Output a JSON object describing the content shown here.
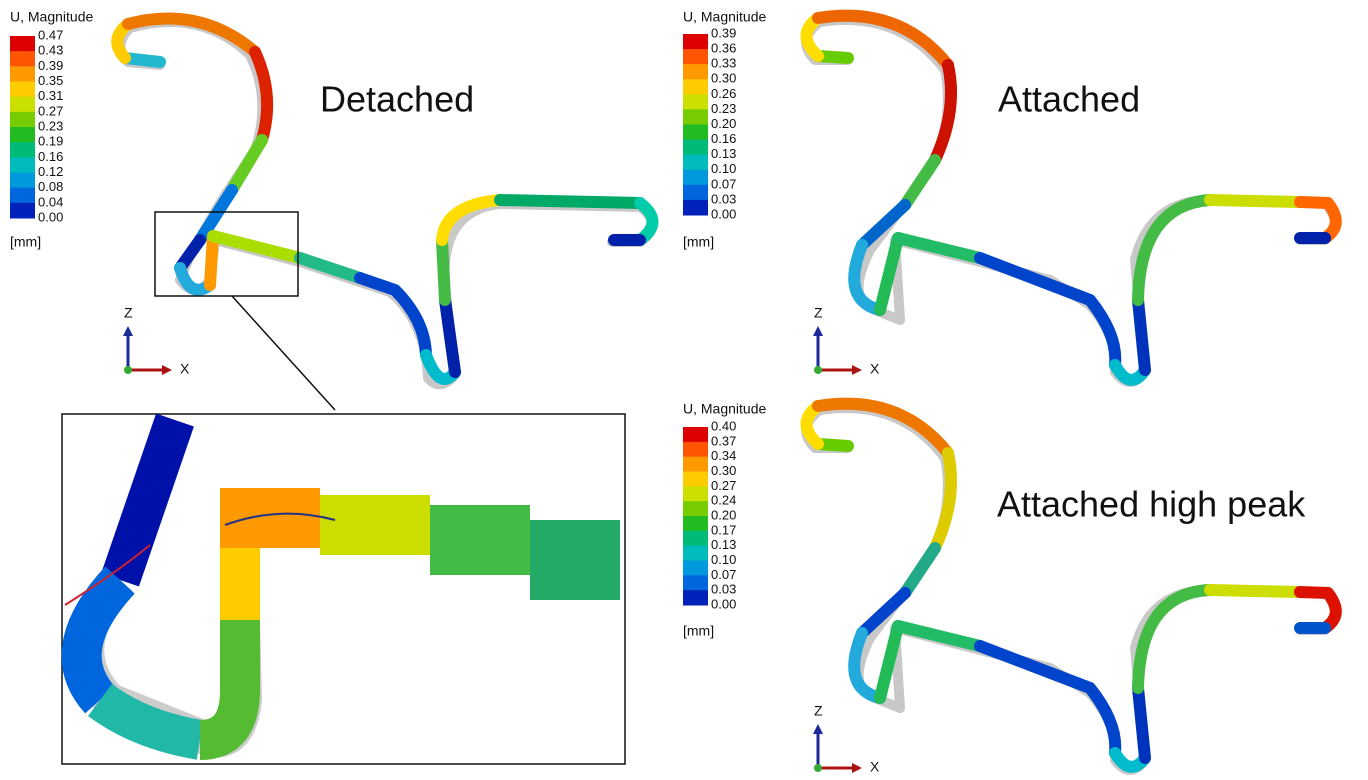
{
  "panels": [
    {
      "label": "Detached",
      "legend": {
        "title": "U, Magnitude",
        "levels": [
          "0.47",
          "0.43",
          "0.39",
          "0.35",
          "0.31",
          "0.27",
          "0.23",
          "0.19",
          "0.16",
          "0.12",
          "0.08",
          "0.04",
          "0.00"
        ],
        "unit": "[mm]"
      },
      "axes": {
        "z": "Z",
        "x": "X"
      }
    },
    {
      "label": "Attached",
      "legend": {
        "title": "U, Magnitude",
        "levels": [
          "0.39",
          "0.36",
          "0.33",
          "0.30",
          "0.26",
          "0.23",
          "0.20",
          "0.16",
          "0.13",
          "0.10",
          "0.07",
          "0.03",
          "0.00"
        ],
        "unit": "[mm]"
      },
      "axes": {
        "z": "Z",
        "x": "X"
      }
    },
    {
      "label": "Attached high peak",
      "legend": {
        "title": "U, Magnitude",
        "levels": [
          "0.40",
          "0.37",
          "0.34",
          "0.30",
          "0.27",
          "0.24",
          "0.20",
          "0.17",
          "0.13",
          "0.10",
          "0.07",
          "0.03",
          "0.00"
        ],
        "unit": "[mm]"
      },
      "axes": {
        "z": "Z",
        "x": "X"
      }
    }
  ]
}
